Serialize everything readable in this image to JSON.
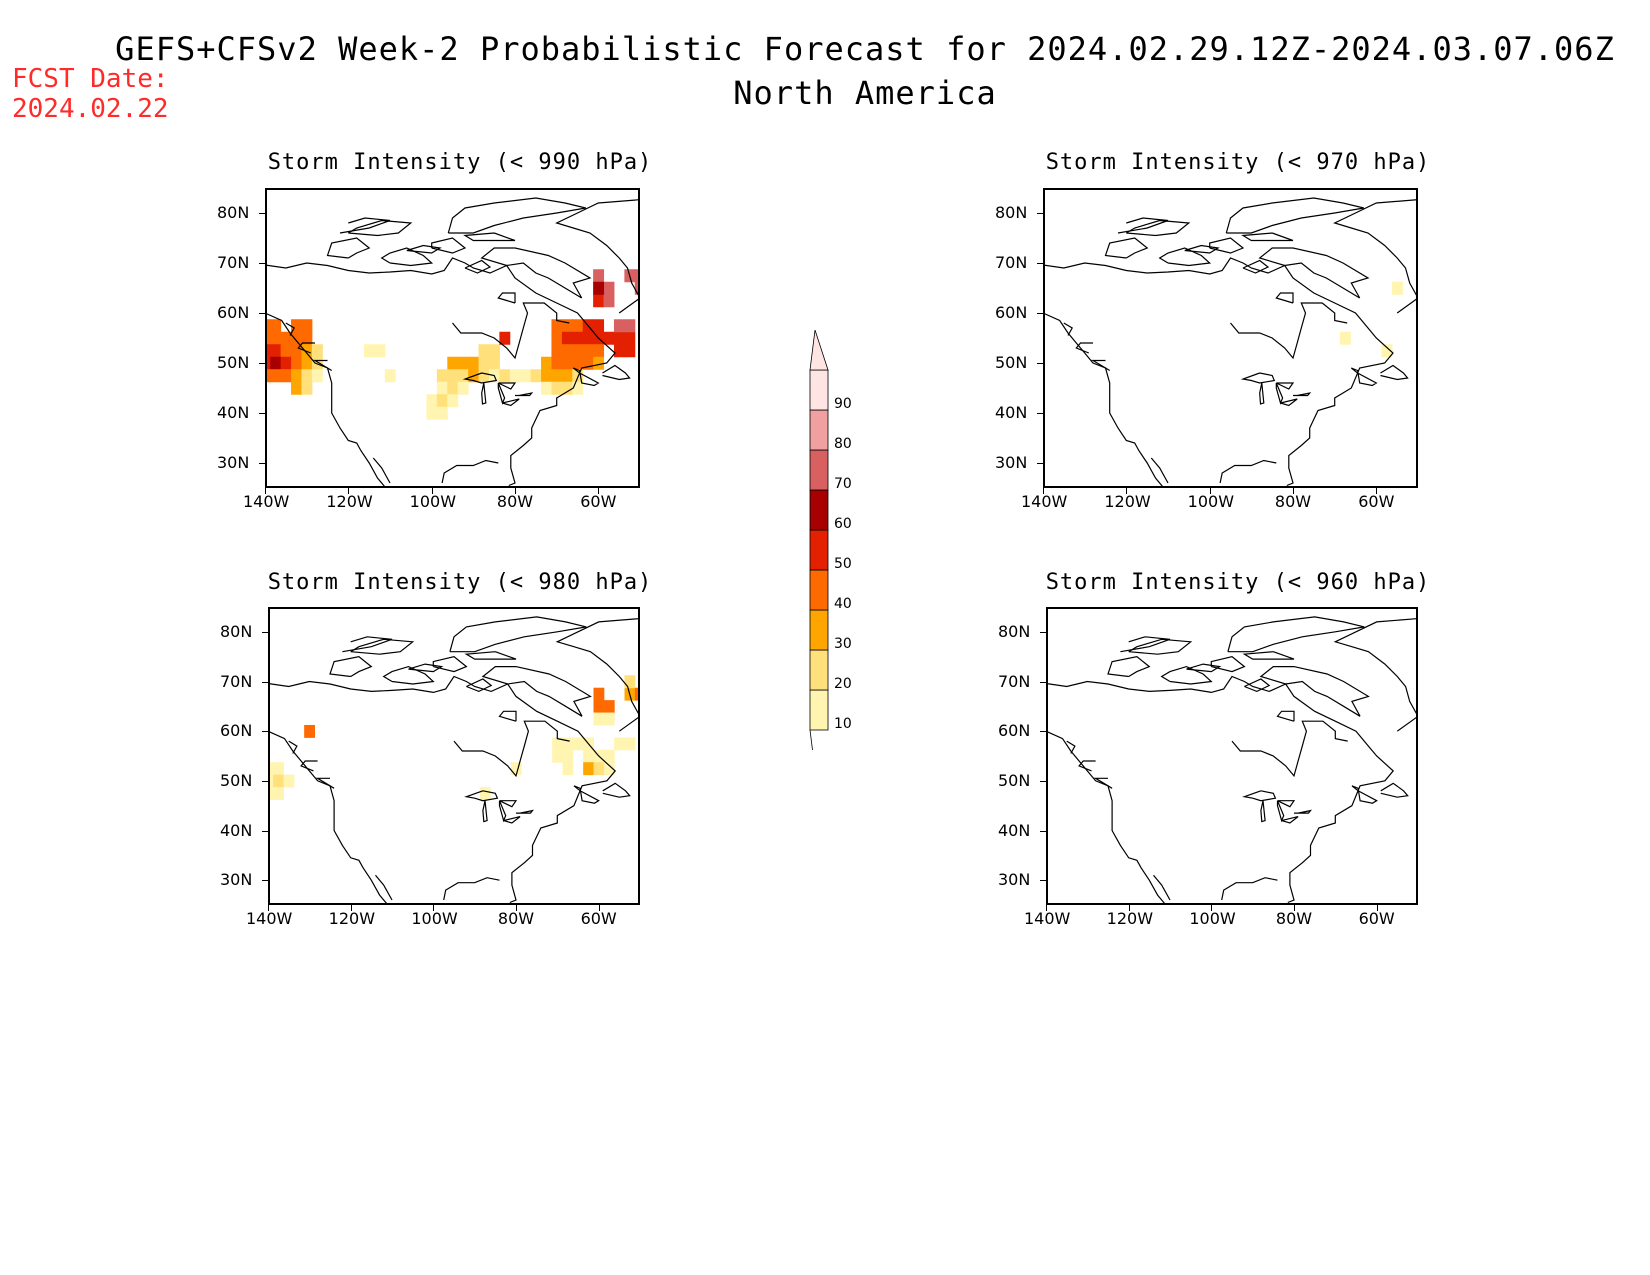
{
  "header": {
    "title_line1": "GEFS+CFSv2 Week-2 Probabilistic Forecast for 2024.02.29.12Z-2024.03.07.06Z",
    "title_line2": "North America",
    "fcst_label": "FCST Date:",
    "fcst_date": "2024.02.22"
  },
  "panels": [
    {
      "id": "p990",
      "title": "Storm Intensity (< 990 hPa)"
    },
    {
      "id": "p980",
      "title": "Storm Intensity (< 980 hPa)"
    },
    {
      "id": "p970",
      "title": "Storm Intensity (< 970 hPa)"
    },
    {
      "id": "p960",
      "title": "Storm Intensity (< 960 hPa)"
    }
  ],
  "axes": {
    "lat_labels": [
      "80N",
      "70N",
      "60N",
      "50N",
      "40N",
      "30N"
    ],
    "lon_labels": [
      "140W",
      "120W",
      "100W",
      "80W",
      "60W"
    ]
  },
  "colorbar": {
    "levels": [
      "10",
      "20",
      "30",
      "40",
      "50",
      "60",
      "70",
      "80",
      "90"
    ],
    "colors": [
      "#fff5b0",
      "#ffe07a",
      "#ffa500",
      "#ff6a00",
      "#e32000",
      "#a80000",
      "#d96060",
      "#f0a0a0",
      "#ffe4e4"
    ]
  },
  "chart_data": [
    {
      "type": "heatmap",
      "title": "Storm Intensity (< 990 hPa)",
      "x_units": "longitude (deg E)",
      "y_units": "latitude (deg N)",
      "xlim": [
        -140,
        -50
      ],
      "ylim": [
        25,
        85
      ],
      "cells": [
        {
          "lon": -140,
          "lat": 57.5,
          "v": 45
        },
        {
          "lon": -137.5,
          "lat": 57.5,
          "v": 45
        },
        {
          "lon": -132.5,
          "lat": 57.5,
          "v": 45
        },
        {
          "lon": -130,
          "lat": 57.5,
          "v": 45
        },
        {
          "lon": -140,
          "lat": 55,
          "v": 45
        },
        {
          "lon": -137.5,
          "lat": 55,
          "v": 45
        },
        {
          "lon": -135,
          "lat": 55,
          "v": 45
        },
        {
          "lon": -132.5,
          "lat": 55,
          "v": 45
        },
        {
          "lon": -130,
          "lat": 55,
          "v": 40
        },
        {
          "lon": -140,
          "lat": 52.5,
          "v": 55
        },
        {
          "lon": -137.5,
          "lat": 52.5,
          "v": 55
        },
        {
          "lon": -135,
          "lat": 52.5,
          "v": 45
        },
        {
          "lon": -132.5,
          "lat": 52.5,
          "v": 45
        },
        {
          "lon": -130,
          "lat": 52.5,
          "v": 35
        },
        {
          "lon": -127.5,
          "lat": 52.5,
          "v": 25
        },
        {
          "lon": -140,
          "lat": 50,
          "v": 55
        },
        {
          "lon": -137.5,
          "lat": 50,
          "v": 65
        },
        {
          "lon": -135,
          "lat": 50,
          "v": 55
        },
        {
          "lon": -132.5,
          "lat": 50,
          "v": 45
        },
        {
          "lon": -130,
          "lat": 50,
          "v": 35
        },
        {
          "lon": -127.5,
          "lat": 50,
          "v": 25
        },
        {
          "lon": -140,
          "lat": 47.5,
          "v": 45
        },
        {
          "lon": -137.5,
          "lat": 47.5,
          "v": 45
        },
        {
          "lon": -135,
          "lat": 47.5,
          "v": 45
        },
        {
          "lon": -132.5,
          "lat": 47.5,
          "v": 35
        },
        {
          "lon": -130,
          "lat": 47.5,
          "v": 25
        },
        {
          "lon": -127.5,
          "lat": 47.5,
          "v": 15
        },
        {
          "lon": -132.5,
          "lat": 45,
          "v": 35
        },
        {
          "lon": -130,
          "lat": 45,
          "v": 25
        },
        {
          "lon": -115,
          "lat": 52.5,
          "v": 15
        },
        {
          "lon": -112.5,
          "lat": 52.5,
          "v": 15
        },
        {
          "lon": -110,
          "lat": 47.5,
          "v": 15
        },
        {
          "lon": -87.5,
          "lat": 52.5,
          "v": 25
        },
        {
          "lon": -85,
          "lat": 52.5,
          "v": 25
        },
        {
          "lon": -82.5,
          "lat": 55,
          "v": 55
        },
        {
          "lon": -97.5,
          "lat": 47.5,
          "v": 25
        },
        {
          "lon": -95,
          "lat": 50,
          "v": 35
        },
        {
          "lon": -92.5,
          "lat": 50,
          "v": 35
        },
        {
          "lon": -90,
          "lat": 50,
          "v": 35
        },
        {
          "lon": -87.5,
          "lat": 50,
          "v": 25
        },
        {
          "lon": -85,
          "lat": 50,
          "v": 25
        },
        {
          "lon": -95,
          "lat": 47.5,
          "v": 25
        },
        {
          "lon": -92.5,
          "lat": 47.5,
          "v": 25
        },
        {
          "lon": -90,
          "lat": 47.5,
          "v": 35
        },
        {
          "lon": -87.5,
          "lat": 47.5,
          "v": 25
        },
        {
          "lon": -85,
          "lat": 47.5,
          "v": 15
        },
        {
          "lon": -82.5,
          "lat": 47.5,
          "v": 25
        },
        {
          "lon": -80,
          "lat": 47.5,
          "v": 15
        },
        {
          "lon": -77.5,
          "lat": 47.5,
          "v": 15
        },
        {
          "lon": -97.5,
          "lat": 45,
          "v": 15
        },
        {
          "lon": -95,
          "lat": 45,
          "v": 25
        },
        {
          "lon": -92.5,
          "lat": 45,
          "v": 15
        },
        {
          "lon": -100,
          "lat": 42.5,
          "v": 15
        },
        {
          "lon": -97.5,
          "lat": 42.5,
          "v": 25
        },
        {
          "lon": -95,
          "lat": 42.5,
          "v": 15
        },
        {
          "lon": -100,
          "lat": 40,
          "v": 15
        },
        {
          "lon": -97.5,
          "lat": 40,
          "v": 15
        },
        {
          "lon": -70,
          "lat": 57.5,
          "v": 45
        },
        {
          "lon": -67.5,
          "lat": 57.5,
          "v": 45
        },
        {
          "lon": -65,
          "lat": 57.5,
          "v": 45
        },
        {
          "lon": -62.5,
          "lat": 57.5,
          "v": 55
        },
        {
          "lon": -60,
          "lat": 57.5,
          "v": 55
        },
        {
          "lon": -70,
          "lat": 55,
          "v": 45
        },
        {
          "lon": -67.5,
          "lat": 55,
          "v": 55
        },
        {
          "lon": -65,
          "lat": 55,
          "v": 55
        },
        {
          "lon": -62.5,
          "lat": 55,
          "v": 55
        },
        {
          "lon": -60,
          "lat": 55,
          "v": 55
        },
        {
          "lon": -57.5,
          "lat": 55,
          "v": 55
        },
        {
          "lon": -55,
          "lat": 55,
          "v": 55
        },
        {
          "lon": -52.5,
          "lat": 55,
          "v": 55
        },
        {
          "lon": -70,
          "lat": 52.5,
          "v": 45
        },
        {
          "lon": -67.5,
          "lat": 52.5,
          "v": 45
        },
        {
          "lon": -65,
          "lat": 52.5,
          "v": 45
        },
        {
          "lon": -62.5,
          "lat": 52.5,
          "v": 45
        },
        {
          "lon": -60,
          "lat": 52.5,
          "v": 45
        },
        {
          "lon": -55,
          "lat": 52.5,
          "v": 55
        },
        {
          "lon": -52.5,
          "lat": 52.5,
          "v": 55
        },
        {
          "lon": -72.5,
          "lat": 50,
          "v": 35
        },
        {
          "lon": -70,
          "lat": 50,
          "v": 45
        },
        {
          "lon": -67.5,
          "lat": 50,
          "v": 45
        },
        {
          "lon": -65,
          "lat": 50,
          "v": 45
        },
        {
          "lon": -62.5,
          "lat": 50,
          "v": 45
        },
        {
          "lon": -60,
          "lat": 50,
          "v": 35
        },
        {
          "lon": -75,
          "lat": 47.5,
          "v": 25
        },
        {
          "lon": -72.5,
          "lat": 47.5,
          "v": 35
        },
        {
          "lon": -70,
          "lat": 47.5,
          "v": 35
        },
        {
          "lon": -67.5,
          "lat": 47.5,
          "v": 35
        },
        {
          "lon": -65,
          "lat": 47.5,
          "v": 25
        },
        {
          "lon": -72.5,
          "lat": 45,
          "v": 15
        },
        {
          "lon": -70,
          "lat": 45,
          "v": 25
        },
        {
          "lon": -67.5,
          "lat": 45,
          "v": 25
        },
        {
          "lon": -65,
          "lat": 45,
          "v": 15
        },
        {
          "lon": -60,
          "lat": 67.5,
          "v": 75
        },
        {
          "lon": -57.5,
          "lat": 65,
          "v": 75
        },
        {
          "lon": -60,
          "lat": 62.5,
          "v": 55
        },
        {
          "lon": -57.5,
          "lat": 62.5,
          "v": 75
        },
        {
          "lon": -60,
          "lat": 65,
          "v": 65
        },
        {
          "lon": -55,
          "lat": 57.5,
          "v": 75
        },
        {
          "lon": -52.5,
          "lat": 57.5,
          "v": 75
        },
        {
          "lon": -52.5,
          "lat": 67.5,
          "v": 75
        },
        {
          "lon": -50,
          "lat": 67.5,
          "v": 75
        },
        {
          "lon": -50,
          "lat": 65,
          "v": 75
        }
      ]
    },
    {
      "type": "heatmap",
      "title": "Storm Intensity (< 980 hPa)",
      "x_units": "longitude (deg E)",
      "y_units": "latitude (deg N)",
      "xlim": [
        -140,
        -50
      ],
      "ylim": [
        25,
        85
      ],
      "cells": [
        {
          "lon": -140,
          "lat": 52.5,
          "v": 15
        },
        {
          "lon": -137.5,
          "lat": 52.5,
          "v": 15
        },
        {
          "lon": -140,
          "lat": 50,
          "v": 15
        },
        {
          "lon": -137.5,
          "lat": 50,
          "v": 25
        },
        {
          "lon": -135,
          "lat": 50,
          "v": 15
        },
        {
          "lon": -140,
          "lat": 47.5,
          "v": 15
        },
        {
          "lon": -137.5,
          "lat": 47.5,
          "v": 15
        },
        {
          "lon": -130,
          "lat": 60,
          "v": 45
        },
        {
          "lon": -87.5,
          "lat": 47.5,
          "v": 15
        },
        {
          "lon": -80,
          "lat": 52.5,
          "v": 15
        },
        {
          "lon": -70,
          "lat": 57.5,
          "v": 15
        },
        {
          "lon": -67.5,
          "lat": 57.5,
          "v": 15
        },
        {
          "lon": -65,
          "lat": 57.5,
          "v": 15
        },
        {
          "lon": -62.5,
          "lat": 57.5,
          "v": 15
        },
        {
          "lon": -70,
          "lat": 55,
          "v": 15
        },
        {
          "lon": -67.5,
          "lat": 55,
          "v": 15
        },
        {
          "lon": -62.5,
          "lat": 55,
          "v": 15
        },
        {
          "lon": -60,
          "lat": 55,
          "v": 15
        },
        {
          "lon": -57.5,
          "lat": 55,
          "v": 15
        },
        {
          "lon": -67.5,
          "lat": 52.5,
          "v": 15
        },
        {
          "lon": -62.5,
          "lat": 52.5,
          "v": 35
        },
        {
          "lon": -60,
          "lat": 52.5,
          "v": 25
        },
        {
          "lon": -57.5,
          "lat": 52.5,
          "v": 15
        },
        {
          "lon": -55,
          "lat": 57.5,
          "v": 15
        },
        {
          "lon": -52.5,
          "lat": 57.5,
          "v": 15
        },
        {
          "lon": -60,
          "lat": 65,
          "v": 45
        },
        {
          "lon": -57.5,
          "lat": 65,
          "v": 45
        },
        {
          "lon": -60,
          "lat": 67.5,
          "v": 45
        },
        {
          "lon": -60,
          "lat": 62.5,
          "v": 15
        },
        {
          "lon": -57.5,
          "lat": 62.5,
          "v": 15
        },
        {
          "lon": -52.5,
          "lat": 67.5,
          "v": 35
        },
        {
          "lon": -50,
          "lat": 67.5,
          "v": 45
        },
        {
          "lon": -52.5,
          "lat": 70,
          "v": 25
        }
      ]
    },
    {
      "type": "heatmap",
      "title": "Storm Intensity (< 970 hPa)",
      "x_units": "longitude (deg E)",
      "y_units": "latitude (deg N)",
      "xlim": [
        -140,
        -50
      ],
      "ylim": [
        25,
        85
      ],
      "cells": [
        {
          "lon": -55,
          "lat": 65,
          "v": 15
        },
        {
          "lon": -67.5,
          "lat": 55,
          "v": 15
        },
        {
          "lon": -57.5,
          "lat": 52.5,
          "v": 15
        }
      ]
    },
    {
      "type": "heatmap",
      "title": "Storm Intensity (< 960 hPa)",
      "x_units": "longitude (deg E)",
      "y_units": "latitude (deg N)",
      "xlim": [
        -140,
        -50
      ],
      "ylim": [
        25,
        85
      ],
      "cells": []
    }
  ]
}
